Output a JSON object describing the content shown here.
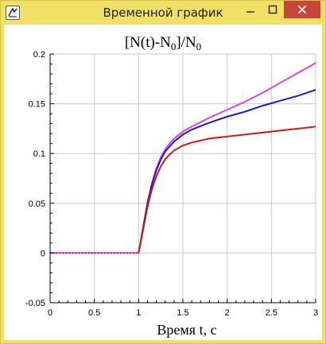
{
  "window": {
    "title": "Временной график",
    "icon": "app-logo-icon",
    "controls": {
      "minimize": "minimize-icon",
      "maximize": "maximize-icon",
      "close": "close-icon"
    },
    "colors": {
      "titlebar": "#f0e066",
      "close": "#c7463a"
    }
  },
  "chart_data": {
    "type": "line",
    "title": {
      "main": "[N(t)-N",
      "sub1": "0",
      "mid": "]/N",
      "sub2": "0"
    },
    "xlabel": "Время t, c",
    "ylabel": "",
    "xlim": [
      0,
      3
    ],
    "ylim": [
      -0.05,
      0.2
    ],
    "xticks": [
      {
        "v": 0,
        "label": "0"
      },
      {
        "v": 0.5,
        "label": "0.5"
      },
      {
        "v": 1,
        "label": "1"
      },
      {
        "v": 1.5,
        "label": "1.5"
      },
      {
        "v": 2,
        "label": "2"
      },
      {
        "v": 2.5,
        "label": "2.5"
      },
      {
        "v": 3,
        "label": "3"
      }
    ],
    "yticks": [
      {
        "v": -0.05,
        "label": "-0.05"
      },
      {
        "v": 0,
        "label": "0"
      },
      {
        "v": 0.05,
        "label": "0.05"
      },
      {
        "v": 0.1,
        "label": "0.1"
      },
      {
        "v": 0.15,
        "label": "0.15"
      },
      {
        "v": 0.2,
        "label": "0.2"
      }
    ],
    "grid": true,
    "series": [
      {
        "color": "#e040e0",
        "x": [
          0,
          0.5,
          1.0,
          1.05,
          1.1,
          1.15,
          1.2,
          1.25,
          1.3,
          1.35,
          1.4,
          1.5,
          1.6,
          1.8,
          2.0,
          2.2,
          2.4,
          2.6,
          2.8,
          3.0
        ],
        "y": [
          0,
          0,
          0,
          0.025,
          0.05,
          0.07,
          0.085,
          0.096,
          0.104,
          0.11,
          0.115,
          0.122,
          0.127,
          0.136,
          0.144,
          0.152,
          0.161,
          0.171,
          0.181,
          0.191
        ]
      },
      {
        "color": "#1a1acc",
        "x": [
          1.0,
          1.05,
          1.1,
          1.15,
          1.2,
          1.25,
          1.3,
          1.35,
          1.4,
          1.5,
          1.6,
          1.8,
          2.0,
          2.2,
          2.4,
          2.6,
          2.8,
          3.0
        ],
        "y": [
          0,
          0.025,
          0.05,
          0.069,
          0.083,
          0.094,
          0.102,
          0.107,
          0.112,
          0.119,
          0.124,
          0.131,
          0.137,
          0.142,
          0.148,
          0.153,
          0.158,
          0.164
        ]
      },
      {
        "color": "#cc1a1a",
        "x": [
          1.0,
          1.05,
          1.1,
          1.15,
          1.2,
          1.25,
          1.3,
          1.35,
          1.4,
          1.5,
          1.6,
          1.8,
          2.0,
          2.2,
          2.4,
          2.6,
          2.8,
          3.0
        ],
        "y": [
          0,
          0.023,
          0.046,
          0.064,
          0.077,
          0.087,
          0.094,
          0.099,
          0.103,
          0.108,
          0.111,
          0.115,
          0.117,
          0.119,
          0.121,
          0.123,
          0.125,
          0.127
        ]
      }
    ]
  }
}
